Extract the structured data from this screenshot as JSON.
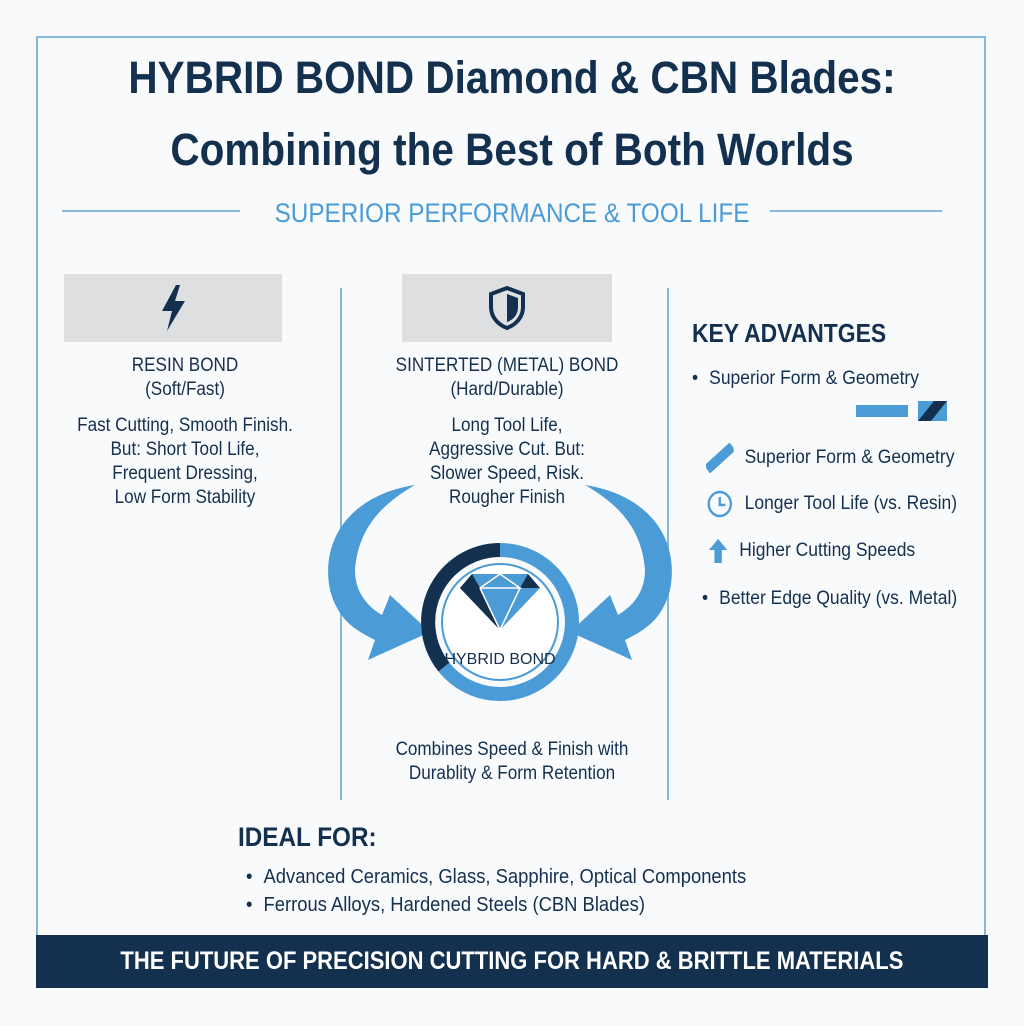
{
  "title": {
    "line1": "HYBRID BOND Diamond & CBN Blades:",
    "line2": "Combining the Best of Both Worlds"
  },
  "subtitle": "SUPERIOR PERFORMANCE & TOOL LIFE",
  "colors": {
    "navy": "#14304f",
    "accent": "#4a9bd6",
    "border": "#86b8dc",
    "box": "#dedfe1"
  },
  "resin": {
    "icon": "lightning-bolt-icon",
    "name": "RESIN BOND",
    "type": "(Soft/Fast)",
    "desc": [
      "Fast Cutting, Smooth Finish.",
      "But: Short Tool Life,",
      "Frequent Dressing,",
      "Low Form Stability"
    ]
  },
  "sintered": {
    "icon": "shield-icon",
    "name": "SINTERTED (METAL) BOND",
    "type": "(Hard/Durable)",
    "desc": [
      "Long Tool Life,",
      "Aggressive Cut. But:",
      "Slower Speed, Risk.",
      "Rougher Finish"
    ]
  },
  "hybrid": {
    "label": "HYBRID BOND",
    "caption": [
      "Combines Speed & Finish with",
      "Durablity & Form Retention"
    ]
  },
  "advantages": {
    "heading": "KEY ADVANTGES",
    "items": [
      {
        "icon": "bullet",
        "text": "Superior Form & Geometry"
      },
      {
        "icon": "ruler-icon",
        "text": "Superior Form & Geometry"
      },
      {
        "icon": "clock-icon",
        "text": "Longer Tool Life (vs. Resin)"
      },
      {
        "icon": "arrow-up-icon",
        "text": "Higher Cutting Speeds"
      },
      {
        "icon": "bullet",
        "text": "Better Edge Quality (vs. Metal)"
      }
    ]
  },
  "ideal": {
    "heading": "IDEAL FOR:",
    "items": [
      "Advanced Ceramics, Glass, Sapphire, Optical Components",
      "Ferrous Alloys, Hardened Steels (CBN Blades)"
    ]
  },
  "footer": "THE FUTURE OF PRECISION CUTTING FOR HARD & BRITTLE MATERIALS"
}
